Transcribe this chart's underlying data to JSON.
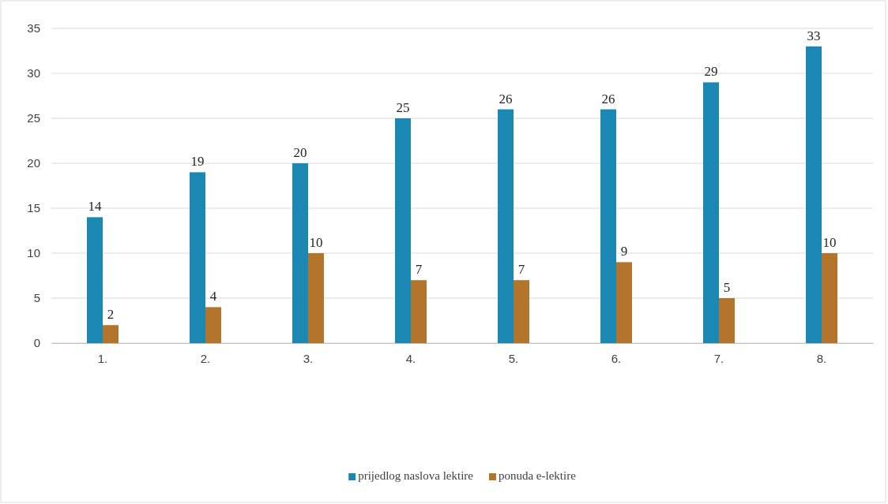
{
  "chart_data": {
    "type": "bar",
    "categories": [
      "1.",
      "2.",
      "3.",
      "4.",
      "5.",
      "6.",
      "7.",
      "8."
    ],
    "series": [
      {
        "name": "prijedlog naslova lektire",
        "color": "#1b88b4",
        "values": [
          14,
          19,
          20,
          25,
          26,
          26,
          29,
          33
        ]
      },
      {
        "name": "ponuda e-lektire",
        "color": "#b3752c",
        "values": [
          2,
          4,
          10,
          7,
          7,
          9,
          5,
          10
        ]
      }
    ],
    "ylim": [
      0,
      35
    ],
    "yticks": [
      0,
      5,
      10,
      15,
      20,
      25,
      30,
      35
    ],
    "grid": "y",
    "legend": "bottom",
    "data_labels": true
  }
}
